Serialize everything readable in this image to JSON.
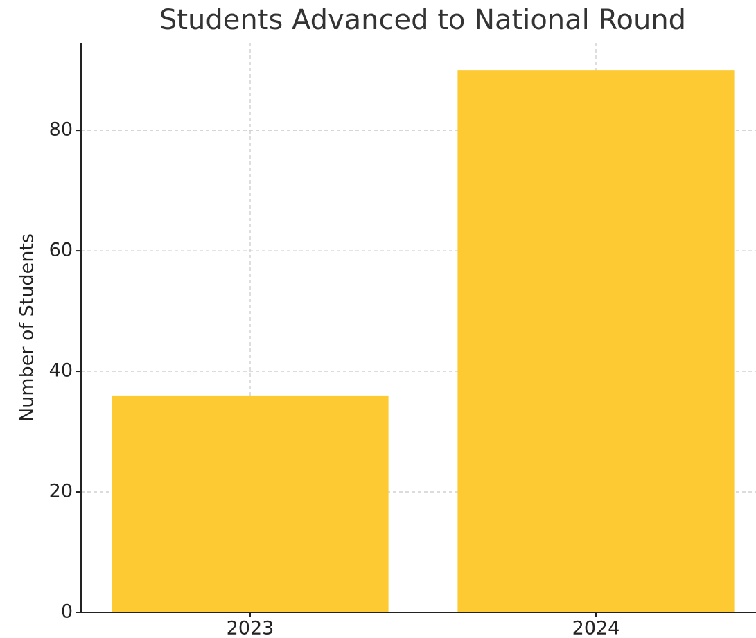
{
  "chart_data": {
    "type": "bar",
    "title": "Students Advanced to National Round",
    "ylabel": "Number of Students",
    "categories": [
      "2023",
      "2024"
    ],
    "values": [
      36,
      90
    ],
    "color": "#fdca33",
    "ylim": [
      0,
      94.5
    ],
    "yticks": [
      0,
      20,
      40,
      60,
      80
    ],
    "grid": true
  }
}
